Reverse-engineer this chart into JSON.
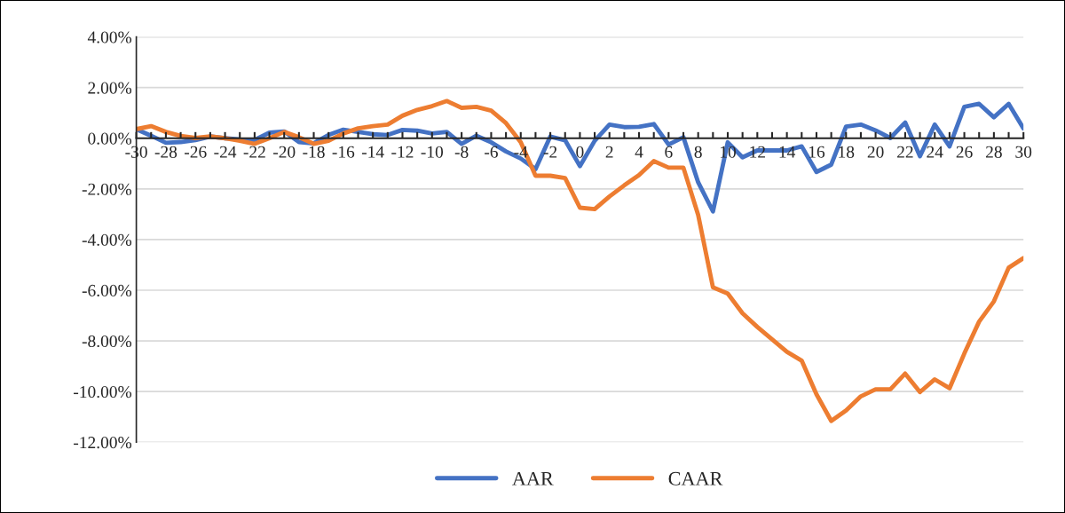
{
  "chart_data": {
    "type": "line",
    "x": [
      -30,
      -29,
      -28,
      -27,
      -26,
      -25,
      -24,
      -23,
      -22,
      -21,
      -20,
      -19,
      -18,
      -17,
      -16,
      -15,
      -14,
      -13,
      -12,
      -11,
      -10,
      -9,
      -8,
      -7,
      -6,
      -5,
      -4,
      -3,
      -2,
      -1,
      0,
      1,
      2,
      3,
      4,
      5,
      6,
      7,
      8,
      9,
      10,
      11,
      12,
      13,
      14,
      15,
      16,
      17,
      18,
      19,
      20,
      21,
      22,
      23,
      24,
      25,
      26,
      27,
      28,
      29,
      30
    ],
    "series": [
      {
        "name": "AAR",
        "color": "#4472c4",
        "values": [
          0.36,
          0.1,
          -0.18,
          -0.15,
          -0.07,
          0.07,
          0,
          -0.05,
          -0.07,
          0.22,
          0.27,
          -0.15,
          -0.2,
          0.13,
          0.34,
          0.25,
          0.16,
          0.13,
          0.33,
          0.3,
          0.19,
          0.25,
          -0.22,
          0.1,
          -0.16,
          -0.52,
          -0.8,
          -1.22,
          0.07,
          -0.08,
          -1.1,
          -0.1,
          0.54,
          0.44,
          0.45,
          0.56,
          -0.25,
          0.04,
          -1.74,
          -2.89,
          -0.16,
          -0.75,
          -0.48,
          -0.48,
          -0.48,
          -0.32,
          -1.33,
          -1.04,
          0.46,
          0.54,
          0.31,
          0.01,
          0.62,
          -0.71,
          0.54,
          -0.32,
          1.24,
          1.36,
          0.83,
          1.36,
          0.39
        ]
      },
      {
        "name": "CAAR",
        "color": "#ed7d31",
        "values": [
          0.36,
          0.48,
          0.25,
          0.09,
          0.01,
          0.07,
          0,
          -0.1,
          -0.22,
          0,
          0.25,
          0.04,
          -0.22,
          -0.1,
          0.19,
          0.39,
          0.48,
          0.54,
          0.89,
          1.12,
          1.27,
          1.47,
          1.2,
          1.24,
          1.09,
          0.6,
          -0.16,
          -1.48,
          -1.48,
          -1.57,
          -2.74,
          -2.8,
          -2.3,
          -1.86,
          -1.45,
          -0.9,
          -1.16,
          -1.16,
          -3.03,
          -5.89,
          -6.13,
          -6.91,
          -7.45,
          -7.94,
          -8.43,
          -8.78,
          -10.11,
          -11.16,
          -10.75,
          -10.19,
          -9.91,
          -9.91,
          -9.29,
          -10.02,
          -9.52,
          -9.87,
          -8.5,
          -7.24,
          -6.44,
          -5.11,
          -4.73
        ]
      }
    ],
    "xlim": [
      -30,
      30
    ],
    "xticks": [
      -30,
      {
        "value": -29,
        "label": null
      },
      -28,
      {
        "value": -27,
        "label": null
      },
      -26,
      {
        "value": -25,
        "label": null
      },
      -24,
      {
        "value": -23,
        "label": null
      },
      -22,
      {
        "value": -21,
        "label": null
      },
      -20,
      {
        "value": -19,
        "label": null
      },
      -18,
      {
        "value": -17,
        "label": null
      },
      -16,
      {
        "value": -15,
        "label": null
      },
      -14,
      {
        "value": -13,
        "label": null
      },
      -12,
      {
        "value": -11,
        "label": null
      },
      -10,
      {
        "value": -9,
        "label": null
      },
      -8,
      {
        "value": -7,
        "label": null
      },
      -6,
      {
        "value": -5,
        "label": null
      },
      -4,
      {
        "value": -3,
        "label": null
      },
      -2,
      {
        "value": -1,
        "label": null
      },
      0,
      {
        "value": 1,
        "label": null
      },
      2,
      {
        "value": 3,
        "label": null
      },
      4,
      {
        "value": 5,
        "label": null
      },
      6,
      {
        "value": 7,
        "label": null
      },
      8,
      {
        "value": 9,
        "label": null
      },
      10,
      {
        "value": 11,
        "label": null
      },
      12,
      {
        "value": 13,
        "label": null
      },
      14,
      {
        "value": 15,
        "label": null
      },
      16,
      {
        "value": 17,
        "label": null
      },
      18,
      {
        "value": 19,
        "label": null
      },
      20,
      {
        "value": 21,
        "label": null
      },
      22,
      {
        "value": 23,
        "label": null
      },
      24,
      {
        "value": 25,
        "label": null
      },
      26,
      {
        "value": 27,
        "label": null
      },
      28,
      {
        "value": 29,
        "label": null
      },
      30
    ],
    "ylim": [
      -12,
      4
    ],
    "yticks": [
      {
        "value": 4,
        "label": "4.00%"
      },
      {
        "value": 2,
        "label": "2.00%"
      },
      {
        "value": 0,
        "label": "0.00%"
      },
      {
        "value": -2,
        "label": "-2.00%"
      },
      {
        "value": -4,
        "label": "-4.00%"
      },
      {
        "value": -6,
        "label": "-6.00%"
      },
      {
        "value": -8,
        "label": "-8.00%"
      },
      {
        "value": -10,
        "label": "-10.00%"
      },
      {
        "value": -12,
        "label": "-12.00%"
      }
    ],
    "grid": "y",
    "legend": "bottom",
    "line_style": "solid",
    "marker": "none"
  }
}
